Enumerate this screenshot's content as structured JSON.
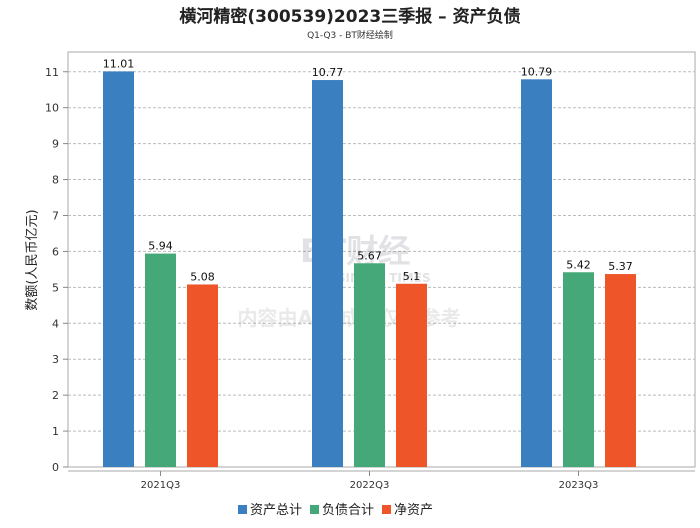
{
  "chart_data": {
    "type": "bar",
    "title": "横河精密(300539)2023三季报 – 资产负债",
    "subtitle": "Q1-Q3 - BT财经绘制",
    "xlabel": "",
    "ylabel": "数额(人民币亿元)",
    "ylim": [
      0,
      11.55
    ],
    "yticks": [
      0,
      1,
      2,
      3,
      4,
      5,
      6,
      7,
      8,
      9,
      10,
      11
    ],
    "grid": true,
    "legend_position": "bottom",
    "categories": [
      "2021Q3",
      "2022Q3",
      "2023Q3"
    ],
    "series": [
      {
        "name": "资产总计",
        "color": "#3a80c0",
        "values": [
          11.01,
          10.77,
          10.79
        ],
        "labels": [
          "11.01",
          "10.77",
          "10.79"
        ]
      },
      {
        "name": "负债合计",
        "color": "#45a878",
        "values": [
          5.94,
          5.67,
          5.42
        ],
        "labels": [
          "5.94",
          "5.67",
          "5.42"
        ]
      },
      {
        "name": "净资产",
        "color": "#ee5528",
        "values": [
          5.08,
          5.1,
          5.37
        ],
        "labels": [
          "5.08",
          "5.1",
          "5.37"
        ]
      }
    ]
  },
  "watermark": {
    "brand": "BT财经",
    "brand_en": "BUSINESS TIMES",
    "notice": "内容由AI生成，仅供参考"
  }
}
